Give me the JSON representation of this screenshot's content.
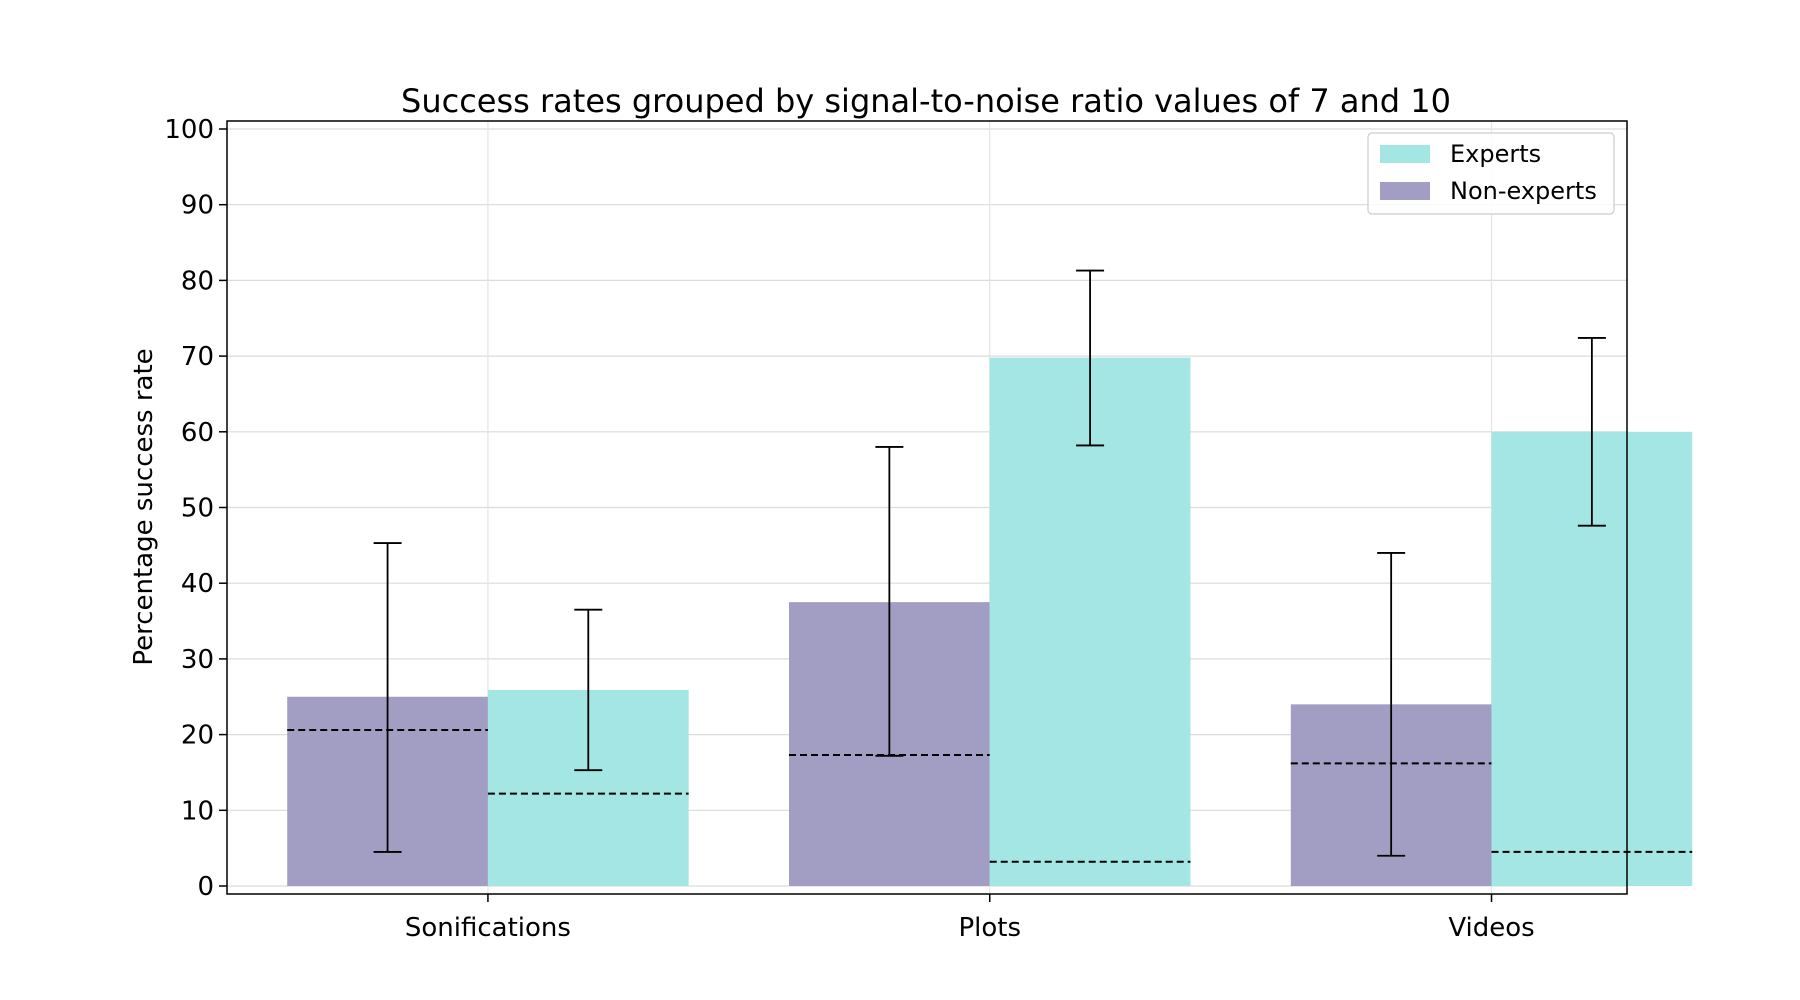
{
  "chart_data": {
    "type": "bar",
    "title": "Success rates grouped by signal-to-noise ratio values of 7 and 10",
    "xlabel": "",
    "ylabel": "Percentage success rate",
    "ylim": [
      0,
      100
    ],
    "yticks": [
      0,
      10,
      20,
      30,
      40,
      50,
      60,
      70,
      80,
      90,
      100
    ],
    "categories": [
      "Sonifications",
      "Plots",
      "Videos"
    ],
    "grid": true,
    "legend_position": "top-right",
    "series": [
      {
        "name": "Non-experts",
        "color": "#a29ec3",
        "values": [
          25.0,
          37.5,
          24.0
        ],
        "err_low": [
          4.5,
          17.2,
          4.0
        ],
        "err_high": [
          45.3,
          58.0,
          44.0
        ],
        "baseline": [
          20.6,
          17.3,
          16.2
        ]
      },
      {
        "name": "Experts",
        "color": "#a3e6e3",
        "values": [
          25.9,
          69.8,
          60.0
        ],
        "err_low": [
          15.3,
          58.2,
          47.6
        ],
        "err_high": [
          36.5,
          81.3,
          72.4
        ],
        "baseline": [
          12.2,
          3.2,
          4.5
        ]
      }
    ],
    "legend_order": [
      "Experts",
      "Non-experts"
    ]
  }
}
